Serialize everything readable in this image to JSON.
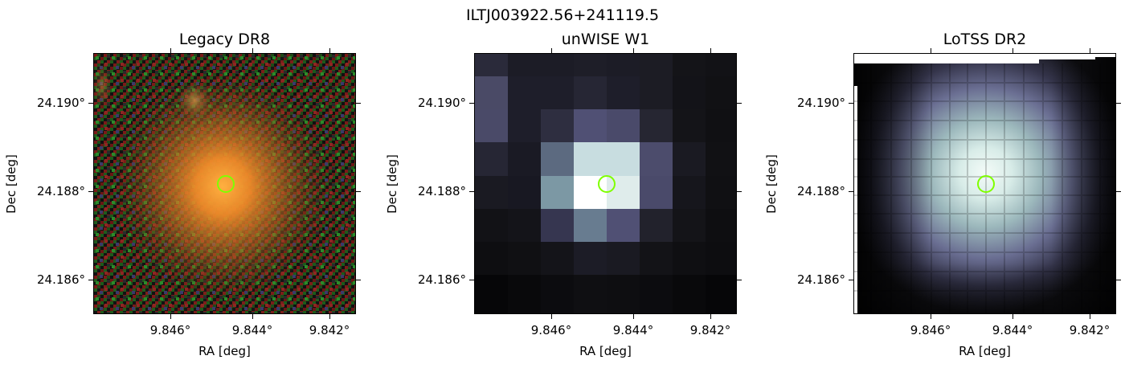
{
  "figure": {
    "title": "ILTJ003922.56+241119.5"
  },
  "panels": [
    {
      "title": "Legacy DR8",
      "xlabel": "RA [deg]",
      "ylabel": "Dec [deg]",
      "xticks": [
        "9.846°",
        "9.844°",
        "9.842°"
      ],
      "yticks": [
        "24.190°",
        "24.188°",
        "24.186°"
      ]
    },
    {
      "title": "unWISE W1",
      "xlabel": "RA [deg]",
      "ylabel": "Dec [deg]",
      "xticks": [
        "9.846°",
        "9.844°",
        "9.842°"
      ],
      "yticks": [
        "24.190°",
        "24.188°",
        "24.186°"
      ]
    },
    {
      "title": "LoTSS DR2",
      "xlabel": "RA [deg]",
      "ylabel": "Dec [deg]",
      "xticks": [
        "9.846°",
        "9.844°",
        "9.842°"
      ],
      "yticks": [
        "24.190°",
        "24.188°",
        "24.186°"
      ]
    }
  ],
  "colors": {
    "marker": "#7fff00",
    "galaxy_core": "#ff9a2a"
  }
}
